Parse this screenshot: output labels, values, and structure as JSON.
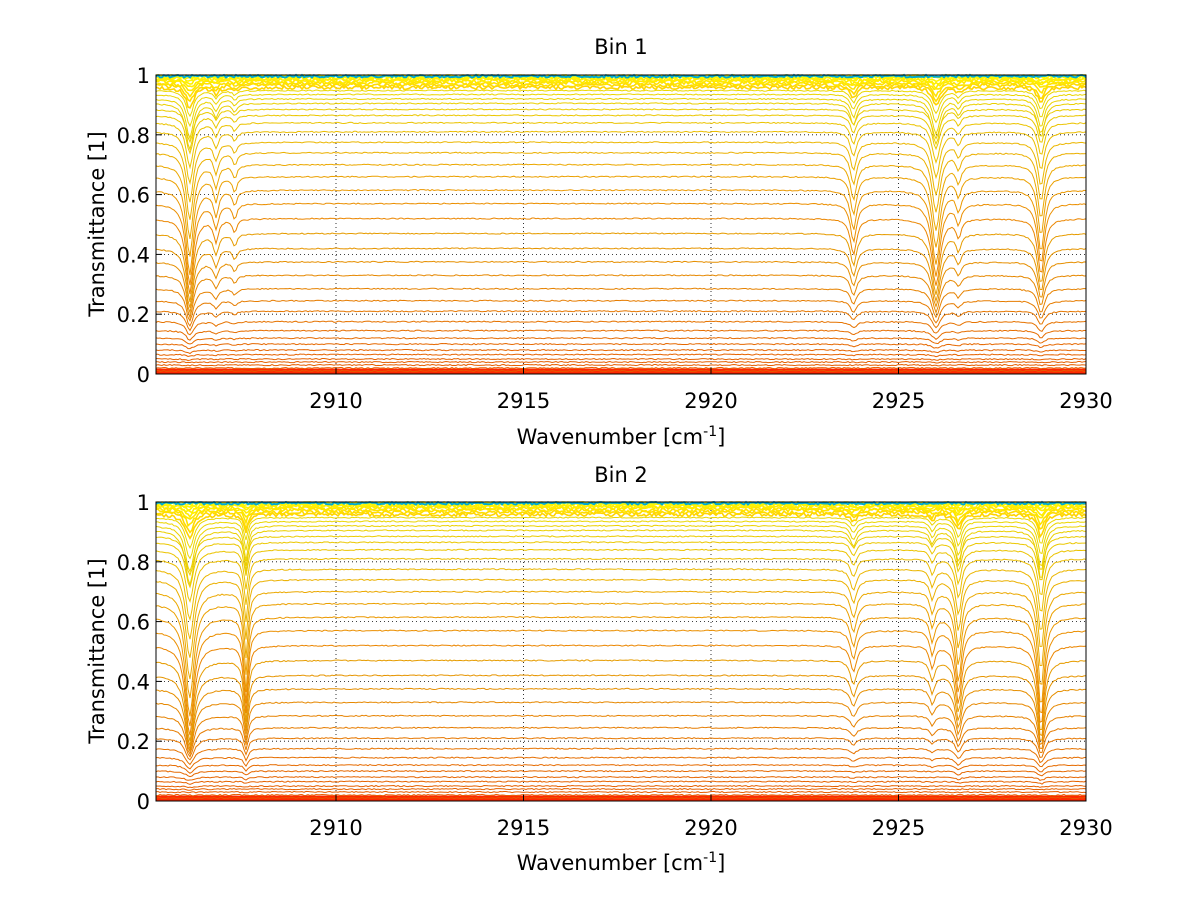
{
  "chart_data": [
    {
      "type": "line",
      "title": "Bin 1",
      "xlabel_base": "Wavenumber [cm",
      "xlabel_sup": "-1",
      "xlabel_tail": "]",
      "ylabel": "Transmittance [1]",
      "xlim": [
        2905.2,
        2930
      ],
      "ylim": [
        0,
        1
      ],
      "xticks": [
        2910,
        2915,
        2920,
        2925,
        2930
      ],
      "xtick_labels": [
        "2910",
        "2915",
        "2920",
        "2925",
        "2930"
      ],
      "yticks": [
        0,
        0.2,
        0.4,
        0.6,
        0.8,
        1
      ],
      "ytick_labels": [
        "0",
        "0.2",
        "0.4",
        "0.6",
        "0.8",
        "1"
      ],
      "grid": true,
      "colormap": "jet",
      "series_count": 60,
      "baseline_levels": [
        0.01,
        0.02,
        0.03,
        0.04,
        0.05,
        0.065,
        0.08,
        0.1,
        0.12,
        0.145,
        0.175,
        0.21,
        0.245,
        0.285,
        0.33,
        0.375,
        0.42,
        0.47,
        0.52,
        0.57,
        0.615,
        0.66,
        0.7,
        0.74,
        0.775,
        0.81,
        0.84,
        0.865,
        0.885,
        0.905,
        0.92,
        0.935,
        0.948,
        0.958,
        0.966,
        0.973,
        0.979,
        0.984,
        0.988,
        0.992,
        0.995,
        0.998
      ],
      "absorption_lines": [
        {
          "x": 2906.1,
          "depth": 0.34,
          "width": 0.12
        },
        {
          "x": 2906.8,
          "depth": 0.1,
          "width": 0.08
        },
        {
          "x": 2907.3,
          "depth": 0.06,
          "width": 0.07
        },
        {
          "x": 2923.8,
          "depth": 0.16,
          "width": 0.1
        },
        {
          "x": 2926.0,
          "depth": 0.3,
          "width": 0.13
        },
        {
          "x": 2926.6,
          "depth": 0.08,
          "width": 0.08
        },
        {
          "x": 2928.8,
          "depth": 0.25,
          "width": 0.11
        }
      ]
    },
    {
      "type": "line",
      "title": "Bin 2",
      "xlabel_base": "Wavenumber [cm",
      "xlabel_sup": "-1",
      "xlabel_tail": "]",
      "ylabel": "Transmittance [1]",
      "xlim": [
        2905.2,
        2930
      ],
      "ylim": [
        0,
        1
      ],
      "xticks": [
        2910,
        2915,
        2920,
        2925,
        2930
      ],
      "xtick_labels": [
        "2910",
        "2915",
        "2920",
        "2925",
        "2930"
      ],
      "yticks": [
        0,
        0.2,
        0.4,
        0.6,
        0.8,
        1
      ],
      "ytick_labels": [
        "0",
        "0.2",
        "0.4",
        "0.6",
        "0.8",
        "1"
      ],
      "grid": true,
      "colormap": "jet",
      "series_count": 60,
      "baseline_levels": [
        0.01,
        0.02,
        0.03,
        0.04,
        0.05,
        0.065,
        0.08,
        0.1,
        0.12,
        0.145,
        0.175,
        0.21,
        0.245,
        0.285,
        0.33,
        0.375,
        0.42,
        0.47,
        0.52,
        0.57,
        0.615,
        0.66,
        0.7,
        0.74,
        0.775,
        0.81,
        0.84,
        0.865,
        0.885,
        0.905,
        0.92,
        0.935,
        0.948,
        0.958,
        0.966,
        0.973,
        0.979,
        0.984,
        0.988,
        0.992,
        0.995,
        0.998
      ],
      "absorption_lines": [
        {
          "x": 2906.1,
          "depth": 0.4,
          "width": 0.14
        },
        {
          "x": 2907.6,
          "depth": 0.3,
          "width": 0.07
        },
        {
          "x": 2923.8,
          "depth": 0.12,
          "width": 0.1
        },
        {
          "x": 2925.9,
          "depth": 0.1,
          "width": 0.08
        },
        {
          "x": 2926.6,
          "depth": 0.26,
          "width": 0.1
        },
        {
          "x": 2928.8,
          "depth": 0.36,
          "width": 0.11
        }
      ]
    }
  ]
}
